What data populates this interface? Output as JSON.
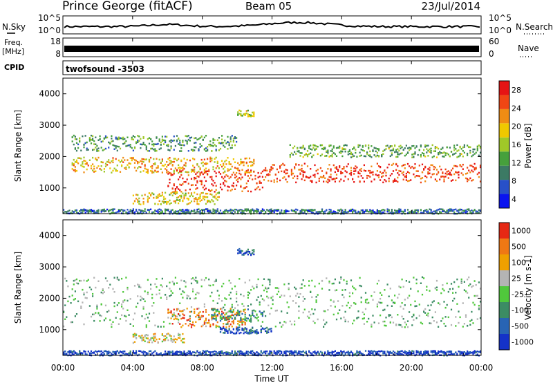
{
  "header": {
    "station": "Prince George (fitACF)",
    "beam": "Beam 05",
    "date": "23/Jul/2014"
  },
  "noise_panel": {
    "left_label": "N.Sky",
    "right_label": "N.Search",
    "left_ticks": [
      "10^5",
      "10^0"
    ],
    "right_ticks": [
      "10^5",
      "10^0"
    ]
  },
  "freq_panel": {
    "left_label_1": "Freq.",
    "left_label_2": "[MHz]",
    "right_label": "Nave",
    "left_ticks": [
      "18",
      "8"
    ],
    "right_ticks": [
      "60",
      "0"
    ],
    "freq_level_mhz": 11.5
  },
  "cpid_panel": {
    "label": "CPID",
    "value": "twofsound  -3503"
  },
  "time_axis": {
    "label": "Time UT",
    "ticks": [
      "00:00",
      "04:00",
      "08:00",
      "12:00",
      "16:00",
      "20:00",
      "00:00"
    ]
  },
  "chart_data": [
    {
      "type": "heatmap",
      "quantity": "Power",
      "ylabel": "Slant Range [km]",
      "colorbar_label": "Power [dB]",
      "ylim": [
        180,
        4500
      ],
      "yticks": [
        1000,
        2000,
        3000,
        4000
      ],
      "x_hours": [
        0,
        24
      ],
      "colorbar_ticks": [
        "28",
        "24",
        "20",
        "16",
        "12",
        "8",
        "4"
      ],
      "colorbar_colors": [
        "#0a14f0",
        "#2850c8",
        "#3c7a64",
        "#46a03c",
        "#a0c828",
        "#f0c800",
        "#f08c14",
        "#f04614",
        "#e61414"
      ],
      "echo_bands": [
        {
          "t0": 0.5,
          "t1": 10.0,
          "r_lo": 2200,
          "r_hi": 2700,
          "level": 0.35
        },
        {
          "t0": 0.5,
          "t1": 11.0,
          "r_lo": 1500,
          "r_hi": 2000,
          "level": 0.65
        },
        {
          "t0": 6.0,
          "t1": 11.5,
          "r_lo": 900,
          "r_hi": 1600,
          "level": 0.9
        },
        {
          "t0": 4.0,
          "t1": 9.0,
          "r_lo": 500,
          "r_hi": 900,
          "level": 0.6
        },
        {
          "t0": 10.0,
          "t1": 11.0,
          "r_lo": 3300,
          "r_hi": 3500,
          "level": 0.5
        },
        {
          "t0": 11.5,
          "t1": 24.0,
          "r_lo": 1200,
          "r_hi": 1800,
          "level": 0.85
        },
        {
          "t0": 13.0,
          "t1": 24.0,
          "r_lo": 2000,
          "r_hi": 2400,
          "level": 0.4
        },
        {
          "t0": 0.0,
          "t1": 24.0,
          "r_lo": 200,
          "r_hi": 350,
          "level": 0.25
        }
      ]
    },
    {
      "type": "heatmap",
      "quantity": "Velocity",
      "ylabel": "Slant Range [km]",
      "colorbar_label": "Velocity [m s-1]",
      "ylim": [
        180,
        4500
      ],
      "yticks": [
        1000,
        2000,
        3000,
        4000
      ],
      "x_hours": [
        0,
        24
      ],
      "colorbar_ticks": [
        "1000",
        "500",
        "100",
        "25",
        "-25",
        "-100",
        "-500",
        "-1000"
      ],
      "colorbar_colors": [
        "#1432c8",
        "#2864b4",
        "#3c8c64",
        "#50c83c",
        "#b4b4b4",
        "#f0a000",
        "#f07814",
        "#e62814"
      ],
      "echo_bands": [
        {
          "t0": 0.0,
          "t1": 24.0,
          "r_lo": 1100,
          "r_hi": 2700,
          "level": 0.45
        },
        {
          "t0": 6.0,
          "t1": 10.5,
          "r_lo": 1100,
          "r_hi": 1700,
          "level": 0.8
        },
        {
          "t0": 8.5,
          "t1": 11.5,
          "r_lo": 1300,
          "r_hi": 1700,
          "level": 0.3
        },
        {
          "t0": 9.0,
          "t1": 12.0,
          "r_lo": 900,
          "r_hi": 1100,
          "level": 0.15
        },
        {
          "t0": 4.0,
          "t1": 7.0,
          "r_lo": 600,
          "r_hi": 900,
          "level": 0.6
        },
        {
          "t0": 10.0,
          "t1": 11.0,
          "r_lo": 3400,
          "r_hi": 3600,
          "level": 0.15
        },
        {
          "t0": 0.0,
          "t1": 24.0,
          "r_lo": 200,
          "r_hi": 350,
          "level": 0.1
        }
      ]
    }
  ]
}
